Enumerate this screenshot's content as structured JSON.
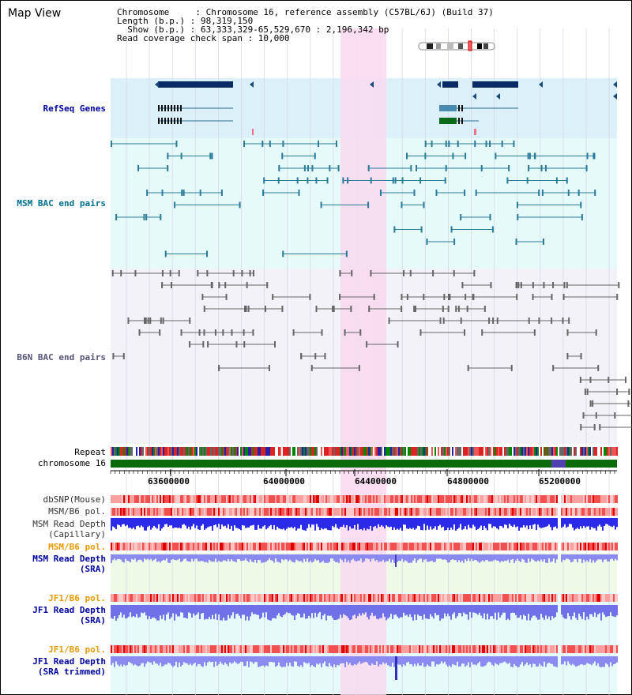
{
  "map_view": {
    "title": "Map View"
  },
  "info": {
    "line1": "Chromosome     : Chromosome 16, reference assembly (C57BL/6J) (Build 37)",
    "line2": "Length (b.p.) : 98,319,150",
    "line3": "  Show (b.p.) : 63,333,329-65,529,670 : 2,196,342 bp",
    "line4": "Read coverage check span : 10,000"
  },
  "tracks": {
    "refseq_label": "RefSeq Genes",
    "msm_bac_label": "MSM BAC end pairs",
    "b6n_bac_label": "B6N BAC end pairs",
    "repeat_label": "Repeat",
    "chromosome_label": "chromosome 16",
    "dbsnp_label": "dbSNP(Mouse)",
    "msm_b6_pol_label": "MSM/B6 pol.",
    "msm_read_depth_cap_label1": "MSM Read Depth",
    "msm_read_depth_cap_label2": "(Capillary)",
    "msm_b6_pol2_label": "MSM/B6 pol.",
    "msm_read_depth_sra_label1": "MSM Read Depth",
    "msm_read_depth_sra_label2": "(SRA)",
    "jf1_b6_pol_label": "JF1/B6 pol.",
    "jf1_read_depth_label1": "JF1 Read Depth",
    "jf1_read_depth_label2": "(SRA)",
    "jf1_b6_pol2_label": "JF1/B6 pol.",
    "jf1_trim_label1": "JF1 Read Depth",
    "jf1_trim_label2": "(SRA trimmed)"
  },
  "axis": {
    "ticks": [
      "63600000",
      "64000000",
      "64400000",
      "64800000",
      "65200000"
    ]
  },
  "colors": {
    "highlight": "#f9d9f0",
    "refseq_bg": "#dcf0fa",
    "msm_bac_bg": "#e6fafa",
    "b6n_bg": "#f2f2f8",
    "label_blue": "#00009c",
    "label_teal": "#006f8c",
    "label_gray": "#555577",
    "label_orange": "#e69a00",
    "chromosome_green": "#0b6b0b"
  }
}
